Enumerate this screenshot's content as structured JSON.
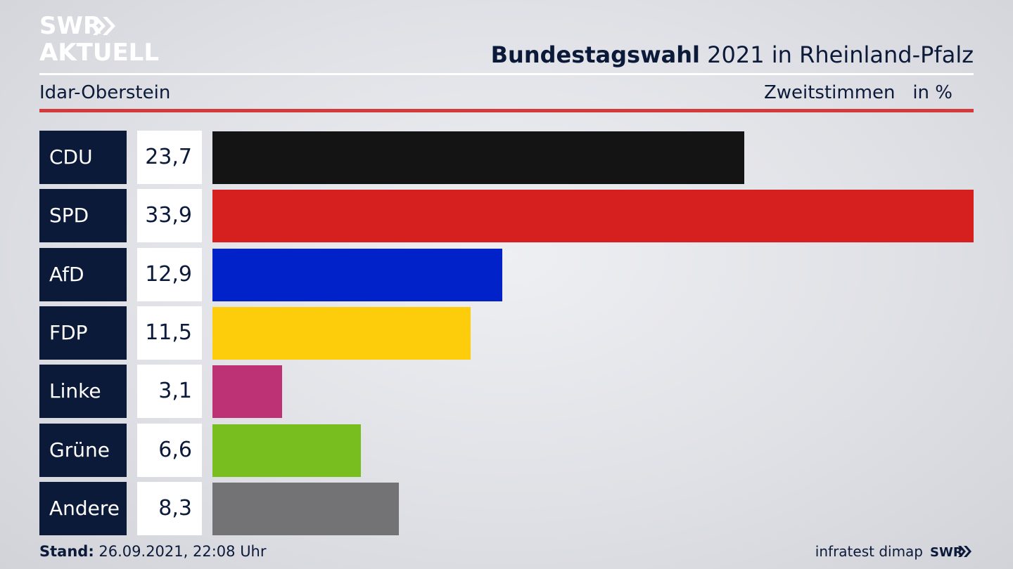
{
  "brand": {
    "logo_line1": "SWR",
    "logo_line2": "AKTUELL",
    "small_logo": "SWR"
  },
  "header": {
    "title_bold": "Bundestagswahl",
    "title_rest": "2021 in Rheinland-Pfalz",
    "region": "Idar-Oberstein",
    "measure": "Zweitstimmen",
    "unit": "in %"
  },
  "colors": {
    "label_bg": "#0c1a3a",
    "accent_rule": "#d43a3a"
  },
  "chart_data": {
    "type": "bar",
    "orientation": "horizontal",
    "categories": [
      "CDU",
      "SPD",
      "AfD",
      "FDP",
      "Linke",
      "Grüne",
      "Andere"
    ],
    "values": [
      23.7,
      33.9,
      12.9,
      11.5,
      3.1,
      6.6,
      8.3
    ],
    "value_labels": [
      "23,7",
      "33,9",
      "12,9",
      "11,5",
      "3,1",
      "6,6",
      "8,3"
    ],
    "colors": [
      "#141414",
      "#d62020",
      "#0022c8",
      "#fdcc0a",
      "#bc3274",
      "#78be1e",
      "#737376"
    ],
    "xlim": [
      0,
      33.9
    ],
    "grid": false
  },
  "footer": {
    "stand_label": "Stand:",
    "stand_value": "26.09.2021, 22:08 Uhr",
    "source": "infratest dimap"
  }
}
